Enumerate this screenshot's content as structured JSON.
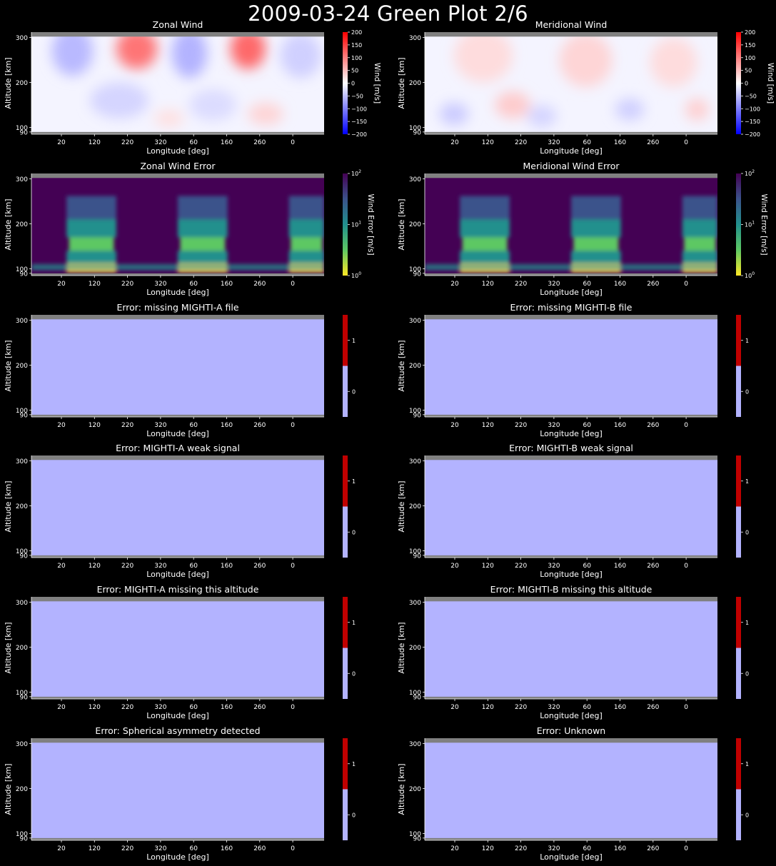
{
  "page_title": "2009-03-24 Green Plot 2/6",
  "shared": {
    "xlabel": "Longitude [deg]",
    "ylabel": "Altitude [km]",
    "x_ticks": [
      "20",
      "120",
      "220",
      "320",
      "60",
      "160",
      "260",
      "0"
    ],
    "y_ticks": [
      90,
      100,
      200,
      300
    ],
    "ylim": [
      85,
      312
    ],
    "colors": {
      "background": "#000000",
      "missing_band": "#808080",
      "flag_zero": "#b3b3ff",
      "flag_one": "#c00000",
      "wind_negative": "#0000ff",
      "wind_zero": "#ffffff",
      "wind_positive": "#ff0000"
    }
  },
  "chart_data": [
    {
      "type": "heatmap",
      "kind": "wind",
      "title": "Zonal Wind",
      "colorbar_label": "Wind [m/s]",
      "colorbar_ticks": [
        "200",
        "150",
        "100",
        "50",
        "0",
        "−50",
        "−100",
        "−150",
        "−200"
      ],
      "clim": [
        -200,
        200
      ],
      "blobs": [
        {
          "lon_frac": 0.14,
          "alt": 270,
          "value": -60,
          "w": 0.07,
          "h": 55
        },
        {
          "lon_frac": 0.36,
          "alt": 275,
          "value": 120,
          "w": 0.07,
          "h": 45
        },
        {
          "lon_frac": 0.54,
          "alt": 265,
          "value": -65,
          "w": 0.06,
          "h": 55
        },
        {
          "lon_frac": 0.74,
          "alt": 275,
          "value": 130,
          "w": 0.06,
          "h": 45
        },
        {
          "lon_frac": 0.92,
          "alt": 260,
          "value": -40,
          "w": 0.07,
          "h": 50
        },
        {
          "lon_frac": 0.3,
          "alt": 160,
          "value": -35,
          "w": 0.1,
          "h": 40
        },
        {
          "lon_frac": 0.62,
          "alt": 150,
          "value": -30,
          "w": 0.08,
          "h": 35
        },
        {
          "lon_frac": 0.47,
          "alt": 120,
          "value": 25,
          "w": 0.05,
          "h": 20
        },
        {
          "lon_frac": 0.8,
          "alt": 130,
          "value": 35,
          "w": 0.06,
          "h": 25
        }
      ]
    },
    {
      "type": "heatmap",
      "kind": "wind",
      "title": "Meridional Wind",
      "colorbar_label": "Wind [m/s]",
      "colorbar_ticks": [
        "200",
        "150",
        "100",
        "50",
        "0",
        "−50",
        "−100",
        "−150",
        "−200"
      ],
      "clim": [
        -200,
        200
      ],
      "blobs": [
        {
          "lon_frac": 0.2,
          "alt": 260,
          "value": 30,
          "w": 0.1,
          "h": 60
        },
        {
          "lon_frac": 0.55,
          "alt": 250,
          "value": 35,
          "w": 0.09,
          "h": 60
        },
        {
          "lon_frac": 0.85,
          "alt": 245,
          "value": 30,
          "w": 0.08,
          "h": 55
        },
        {
          "lon_frac": 0.1,
          "alt": 130,
          "value": -45,
          "w": 0.05,
          "h": 25
        },
        {
          "lon_frac": 0.4,
          "alt": 125,
          "value": -35,
          "w": 0.05,
          "h": 25
        },
        {
          "lon_frac": 0.7,
          "alt": 140,
          "value": -40,
          "w": 0.05,
          "h": 25
        },
        {
          "lon_frac": 0.3,
          "alt": 150,
          "value": 45,
          "w": 0.06,
          "h": 30
        },
        {
          "lon_frac": 0.93,
          "alt": 140,
          "value": 40,
          "w": 0.04,
          "h": 25
        }
      ]
    },
    {
      "type": "heatmap",
      "kind": "error",
      "title": "Zonal Wind Error",
      "colorbar_label": "Wind Error [m/s]",
      "colorbar_ticks": [
        "10",
        "10",
        "10"
      ],
      "colorbar_exponents": [
        "2",
        "1",
        "0"
      ],
      "clim": [
        1,
        100
      ],
      "log_scale": true,
      "colors": [
        "#440154",
        "#3b528b",
        "#21908d",
        "#5dc863",
        "#fde725"
      ],
      "columns": [
        [
          0.12,
          0.29
        ],
        [
          0.5,
          0.67
        ],
        [
          0.88,
          1.0
        ]
      ],
      "low_bands": [
        {
          "alt": [
            98,
            104
          ],
          "value": 10
        },
        {
          "alt": [
            106,
            110
          ],
          "value": 12
        }
      ]
    },
    {
      "type": "heatmap",
      "kind": "error",
      "title": "Meridional Wind Error",
      "colorbar_label": "Wind Error [m/s]",
      "colorbar_ticks": [
        "10",
        "10",
        "10"
      ],
      "colorbar_exponents": [
        "2",
        "1",
        "0"
      ],
      "clim": [
        1,
        100
      ],
      "log_scale": true,
      "colors": [
        "#440154",
        "#3b528b",
        "#21908d",
        "#5dc863",
        "#fde725"
      ],
      "columns": [
        [
          0.12,
          0.29
        ],
        [
          0.5,
          0.67
        ],
        [
          0.88,
          1.0
        ]
      ],
      "low_bands": [
        {
          "alt": [
            98,
            104
          ],
          "value": 10
        },
        {
          "alt": [
            106,
            110
          ],
          "value": 12
        }
      ]
    },
    {
      "type": "heatmap",
      "kind": "flag",
      "title": "Error: missing MIGHTI-A file",
      "value": 0,
      "colorbar_ticks": [
        "1",
        "0"
      ]
    },
    {
      "type": "heatmap",
      "kind": "flag",
      "title": "Error: missing MIGHTI-B file",
      "value": 0,
      "colorbar_ticks": [
        "1",
        "0"
      ]
    },
    {
      "type": "heatmap",
      "kind": "flag",
      "title": "Error: MIGHTI-A weak signal",
      "value": 0,
      "colorbar_ticks": [
        "1",
        "0"
      ]
    },
    {
      "type": "heatmap",
      "kind": "flag",
      "title": "Error: MIGHTI-B weak signal",
      "value": 0,
      "colorbar_ticks": [
        "1",
        "0"
      ]
    },
    {
      "type": "heatmap",
      "kind": "flag",
      "title": "Error: MIGHTI-A missing this altitude",
      "value": 0,
      "colorbar_ticks": [
        "1",
        "0"
      ]
    },
    {
      "type": "heatmap",
      "kind": "flag",
      "title": "Error: MIGHTI-B missing this altitude",
      "value": 0,
      "colorbar_ticks": [
        "1",
        "0"
      ]
    },
    {
      "type": "heatmap",
      "kind": "flag",
      "title": "Error: Spherical asymmetry detected",
      "value": 0,
      "colorbar_ticks": [
        "1",
        "0"
      ]
    },
    {
      "type": "heatmap",
      "kind": "flag",
      "title": "Error: Unknown",
      "value": 0,
      "colorbar_ticks": [
        "1",
        "0"
      ]
    }
  ]
}
